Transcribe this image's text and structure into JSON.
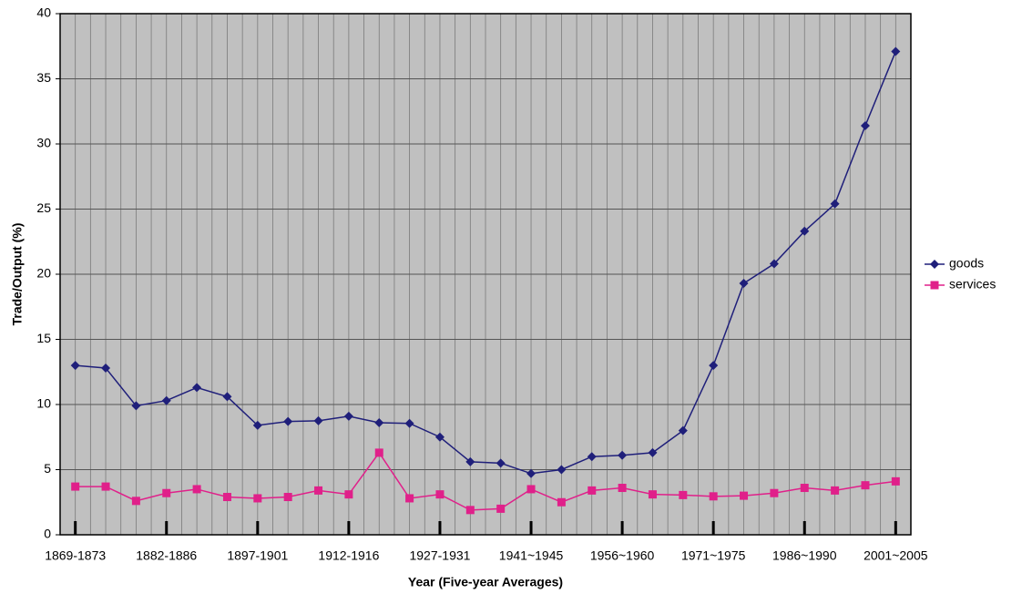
{
  "chart_data": {
    "type": "line",
    "y_label": "Trade/Output (%)",
    "x_label": "Year (Five-year Averages)",
    "categories": [
      "1869-1873",
      null,
      null,
      "1882-1886",
      null,
      null,
      "1897-1901",
      null,
      null,
      "1912-1916",
      null,
      null,
      "1927-1931",
      null,
      null,
      "1941~1945",
      null,
      null,
      "1956~1960",
      null,
      null,
      "1971~1975",
      null,
      null,
      "1986~1990",
      null,
      null,
      "2001~2005"
    ],
    "series": [
      {
        "name": "goods",
        "color": "#1f1f7a",
        "marker": "diamond",
        "values": [
          13.0,
          12.8,
          9.9,
          10.3,
          11.3,
          10.6,
          8.4,
          8.7,
          8.75,
          9.1,
          8.6,
          8.55,
          7.5,
          5.6,
          5.5,
          4.7,
          5.0,
          6.0,
          6.1,
          6.3,
          8.0,
          13.0,
          19.3,
          20.8,
          23.3,
          25.4,
          31.4,
          37.1
        ]
      },
      {
        "name": "services",
        "color": "#e0208a",
        "marker": "square",
        "values": [
          3.7,
          3.7,
          2.6,
          3.2,
          3.5,
          2.9,
          2.8,
          2.9,
          3.4,
          3.1,
          6.3,
          2.8,
          3.1,
          1.9,
          2.0,
          3.5,
          2.5,
          3.4,
          3.6,
          3.1,
          3.05,
          2.95,
          3.0,
          3.2,
          3.6,
          3.4,
          3.8,
          4.1
        ]
      }
    ],
    "ylim": [
      0,
      40
    ],
    "yticks": [
      0,
      5,
      10,
      15,
      20,
      25,
      30,
      35,
      40
    ],
    "grid": true,
    "legend": "right",
    "plot_background": "#c0c0c0"
  }
}
